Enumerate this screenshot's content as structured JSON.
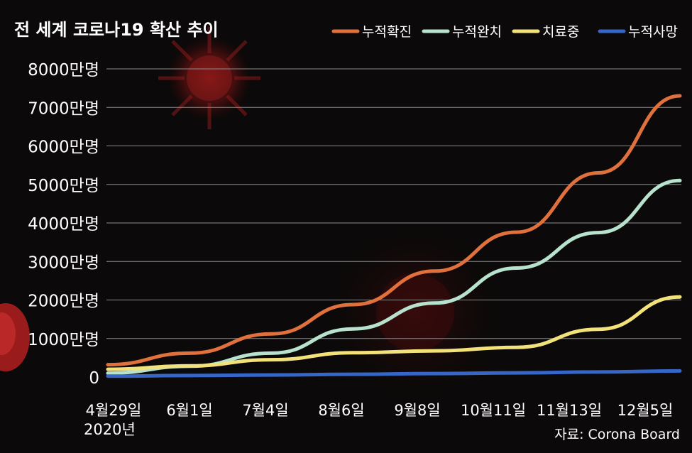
{
  "chart_data": {
    "type": "line",
    "title": "전 세계 코로나19 확산 추이",
    "source": "자료: Corona Board",
    "x": [
      "4월29일",
      "6월1일",
      "7월4일",
      "8월6일",
      "9월8일",
      "10월11일",
      "11월13일",
      "12월5일"
    ],
    "x_sublabel": "2020년",
    "y_tick_labels": [
      "0",
      "1000만명",
      "2000만명",
      "3000만명",
      "4000만명",
      "5000만명",
      "6000만명",
      "7000만명",
      "8000만명"
    ],
    "y_tick_values": [
      0,
      10000000,
      20000000,
      30000000,
      40000000,
      50000000,
      60000000,
      70000000,
      80000000
    ],
    "ylim": [
      0,
      80000000
    ],
    "grid": true,
    "legend_position": "top-right",
    "series": [
      {
        "name": "누적확진",
        "color": "#e0703c",
        "values": [
          3200000,
          6200000,
          11200000,
          18800000,
          27500000,
          37600000,
          53000000,
          73000000
        ]
      },
      {
        "name": "누적완치",
        "color": "#b7e2cd",
        "values": [
          1000000,
          2800000,
          6200000,
          12500000,
          19200000,
          28300000,
          37500000,
          51000000
        ]
      },
      {
        "name": "치료중",
        "color": "#f3e27a",
        "values": [
          2000000,
          2900000,
          4500000,
          6300000,
          6800000,
          7700000,
          12400000,
          20800000
        ]
      },
      {
        "name": "누적사망",
        "color": "#3566c8",
        "values": [
          230000,
          380000,
          530000,
          720000,
          900000,
          1080000,
          1300000,
          1580000
        ]
      }
    ]
  }
}
